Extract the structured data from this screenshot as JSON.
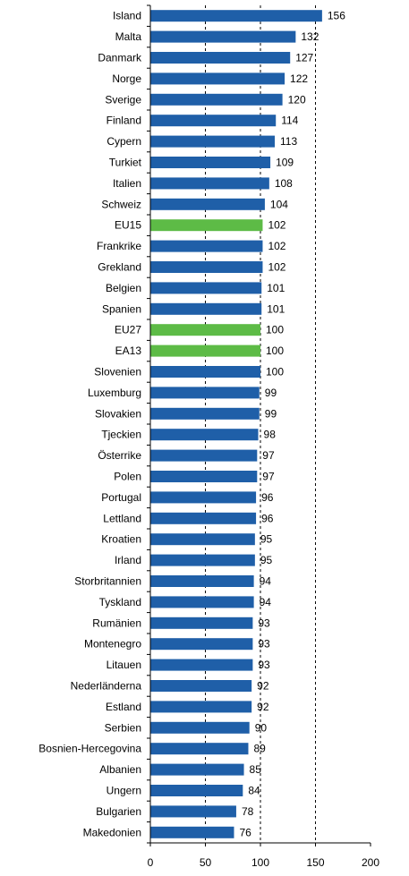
{
  "chart_data": {
    "type": "bar",
    "orientation": "horizontal",
    "title": "",
    "xlabel": "",
    "ylabel": "",
    "xlim": [
      0,
      200
    ],
    "xticks": [
      0,
      50,
      100,
      150,
      200
    ],
    "grid": "vertical dashed at 50, 100, 150",
    "legend": "none",
    "colors": {
      "default": "#1F5FA8",
      "highlight": "#5DBB46"
    },
    "categories": [
      "Island",
      "Malta",
      "Danmark",
      "Norge",
      "Sverige",
      "Finland",
      "Cypern",
      "Turkiet",
      "Italien",
      "Schweiz",
      "EU15",
      "Frankrike",
      "Grekland",
      "Belgien",
      "Spanien",
      "EU27",
      "EA13",
      "Slovenien",
      "Luxemburg",
      "Slovakien",
      "Tjeckien",
      "Österrike",
      "Polen",
      "Portugal",
      "Lettland",
      "Kroatien",
      "Irland",
      "Storbritannien",
      "Tyskland",
      "Rumänien",
      "Montenegro",
      "Litauen",
      "Nederländerna",
      "Estland",
      "Serbien",
      "Bosnien-Hercegovina",
      "Albanien",
      "Ungern",
      "Bulgarien",
      "Makedonien"
    ],
    "values": [
      156,
      132,
      127,
      122,
      120,
      114,
      113,
      109,
      108,
      104,
      102,
      102,
      102,
      101,
      101,
      100,
      100,
      100,
      99,
      99,
      98,
      97,
      97,
      96,
      96,
      95,
      95,
      94,
      94,
      93,
      93,
      93,
      92,
      92,
      90,
      89,
      85,
      84,
      78,
      76
    ],
    "highlighted": [
      "EU15",
      "EU27",
      "EA13"
    ]
  }
}
